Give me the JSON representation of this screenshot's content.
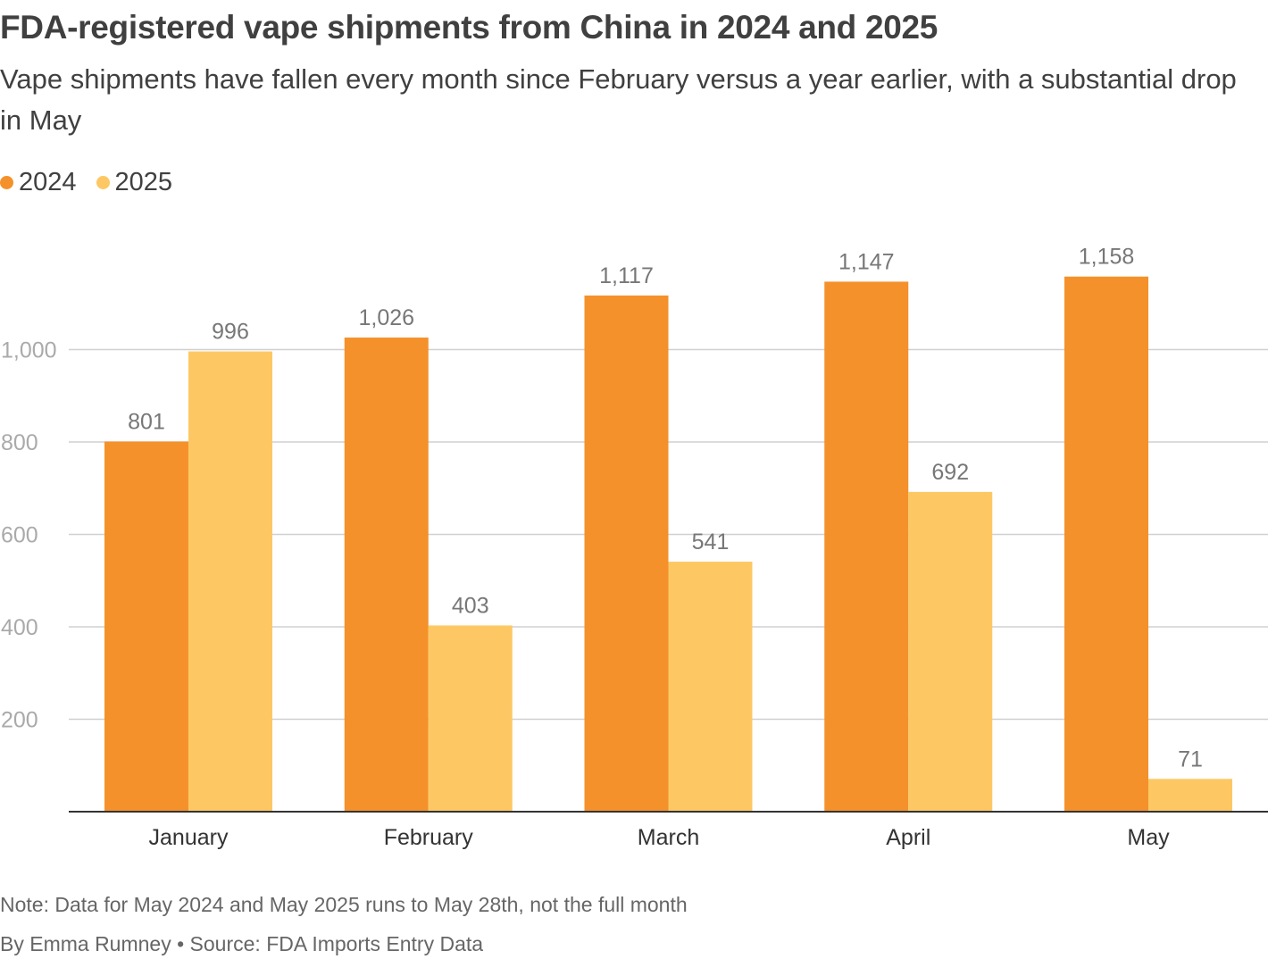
{
  "title": "FDA-registered vape shipments from China in 2024 and 2025",
  "subtitle": "Vape shipments have fallen every month since February versus a year earlier, with a substantial drop in May",
  "note": "Note: Data for May 2024 and May 2025 runs to May 28th, not the full month",
  "credit": "By Emma Rumney • Source: FDA Imports Entry Data",
  "chart_data": {
    "type": "bar",
    "categories": [
      "January",
      "February",
      "March",
      "April",
      "May"
    ],
    "series": [
      {
        "name": "2024",
        "color": "#f4912b",
        "values": [
          801,
          1026,
          1117,
          1147,
          1158
        ],
        "labels": [
          "801",
          "1,026",
          "1,117",
          "1,147",
          "1,158"
        ]
      },
      {
        "name": "2025",
        "color": "#fdc864",
        "values": [
          996,
          403,
          541,
          692,
          71
        ],
        "labels": [
          "996",
          "403",
          "541",
          "692",
          "71"
        ]
      }
    ],
    "ylim": [
      0,
      1200
    ],
    "yticks": [
      200,
      400,
      600,
      800,
      1000
    ],
    "ytick_labels": [
      "200",
      "400",
      "600",
      "800",
      "1,000"
    ],
    "legend_position": "top-left",
    "grid": true
  }
}
